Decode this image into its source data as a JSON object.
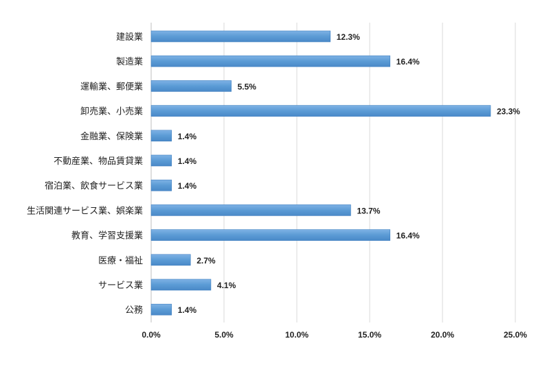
{
  "chart_data": {
    "type": "bar",
    "orientation": "horizontal",
    "categories": [
      "建設業",
      "製造業",
      "運輸業、郵便業",
      "卸売業、小売業",
      "金融業、保険業",
      "不動産業、物品賃貸業",
      "宿泊業、飲食サービス業",
      "生活関連サービス業、娯楽業",
      "教育、学習支援業",
      "医療・福祉",
      "サービス業",
      "公務"
    ],
    "values": [
      12.3,
      16.4,
      5.5,
      23.3,
      1.4,
      1.4,
      1.4,
      13.7,
      16.4,
      2.7,
      4.1,
      1.4
    ],
    "data_labels": [
      "12.3%",
      "16.4%",
      "5.5%",
      "23.3%",
      "1.4%",
      "1.4%",
      "1.4%",
      "13.7%",
      "16.4%",
      "2.7%",
      "4.1%",
      "1.4%"
    ],
    "xticks": [
      0,
      5,
      10,
      15,
      20,
      25
    ],
    "xtick_labels": [
      "0.0%",
      "5.0%",
      "10.0%",
      "15.0%",
      "20.0%",
      "25.0%"
    ],
    "xlim": [
      0,
      25
    ],
    "grid": true,
    "bar_color": "#5b9bd5",
    "bar_edge_color": "#3f7fc0"
  }
}
